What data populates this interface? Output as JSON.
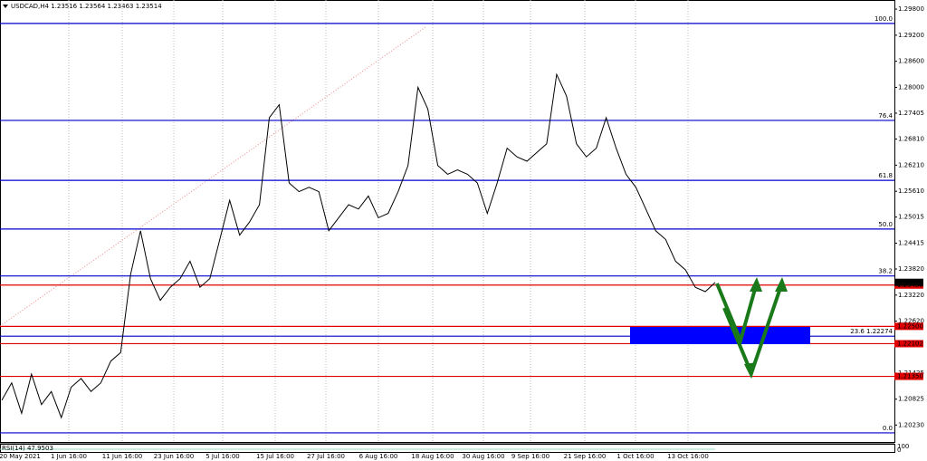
{
  "chart_data": {
    "type": "line",
    "header": "USDCAD,H4  1.23516 1.23564 1.23463 1.23514",
    "indicator": "RSI(14) 47.9503",
    "indicator_ticks": [
      "100",
      "0"
    ],
    "ylim": [
      1.1984,
      1.3001
    ],
    "yticks": [
      {
        "value": 1.298,
        "label": "1.29800"
      },
      {
        "value": 1.292,
        "label": "1.29200"
      },
      {
        "value": 1.286,
        "label": "1.28600"
      },
      {
        "value": 1.28,
        "label": "1.28000"
      },
      {
        "value": 1.27405,
        "label": "1.27405"
      },
      {
        "value": 1.2681,
        "label": "1.26810"
      },
      {
        "value": 1.2621,
        "label": "1.26210"
      },
      {
        "value": 1.2561,
        "label": "1.25610"
      },
      {
        "value": 1.25015,
        "label": "1.25015"
      },
      {
        "value": 1.24415,
        "label": "1.24415"
      },
      {
        "value": 1.2382,
        "label": "1.23820"
      },
      {
        "value": 1.2322,
        "label": "1.23220"
      },
      {
        "value": 1.2262,
        "label": "1.22620"
      },
      {
        "value": 1.21425,
        "label": "1.21425"
      },
      {
        "value": 1.20825,
        "label": "1.20825"
      },
      {
        "value": 1.2023,
        "label": "1.20230"
      }
    ],
    "x_labels": [
      "20 May 2021",
      "1 Jun 16:00",
      "11 Jun 16:00",
      "23 Jun 16:00",
      "5 Jul 16:00",
      "15 Jul 16:00",
      "27 Jul 16:00",
      "6 Aug 16:00",
      "18 Aug 16:00",
      "30 Aug 16:00",
      "9 Sep 16:00",
      "21 Sep 16:00",
      "1 Oct 16:00",
      "13 Oct 16:00"
    ],
    "fib_levels": [
      {
        "value": 1.2947,
        "label": "100.0"
      },
      {
        "value": 1.2724,
        "label": "76.4"
      },
      {
        "value": 1.2586,
        "label": "61.8"
      },
      {
        "value": 1.2474,
        "label": "50.0"
      },
      {
        "value": 1.2366,
        "label": "38.2"
      },
      {
        "value": 1.22274,
        "label": "23.6 1.22274"
      },
      {
        "value": 1.2005,
        "label": "0.0"
      }
    ],
    "levels": [
      {
        "value": 1.2345,
        "label": "1.23450"
      },
      {
        "value": 1.225,
        "label": "1.22500"
      },
      {
        "value": 1.22102,
        "label": "1.22102"
      },
      {
        "value": 1.2135,
        "label": "1.21350"
      }
    ],
    "current_price": {
      "value": 1.23514,
      "label": "1.23514"
    },
    "series": [
      {
        "name": "USDCAD",
        "color": "#000000",
        "values": [
          1.208,
          1.212,
          1.205,
          1.214,
          1.207,
          1.21,
          1.204,
          1.211,
          1.213,
          1.21,
          1.212,
          1.217,
          1.219,
          1.237,
          1.247,
          1.236,
          1.231,
          1.234,
          1.236,
          1.24,
          1.234,
          1.236,
          1.245,
          1.254,
          1.246,
          1.249,
          1.253,
          1.273,
          1.276,
          1.258,
          1.256,
          1.257,
          1.256,
          1.247,
          1.25,
          1.253,
          1.252,
          1.255,
          1.25,
          1.251,
          1.256,
          1.262,
          1.28,
          1.275,
          1.262,
          1.26,
          1.261,
          1.26,
          1.258,
          1.251,
          1.258,
          1.266,
          1.264,
          1.263,
          1.265,
          1.267,
          1.283,
          1.278,
          1.267,
          1.264,
          1.266,
          1.273,
          1.266,
          1.26,
          1.257,
          1.252,
          1.247,
          1.245,
          1.24,
          1.238,
          1.234,
          1.233,
          1.2351
        ]
      }
    ]
  }
}
